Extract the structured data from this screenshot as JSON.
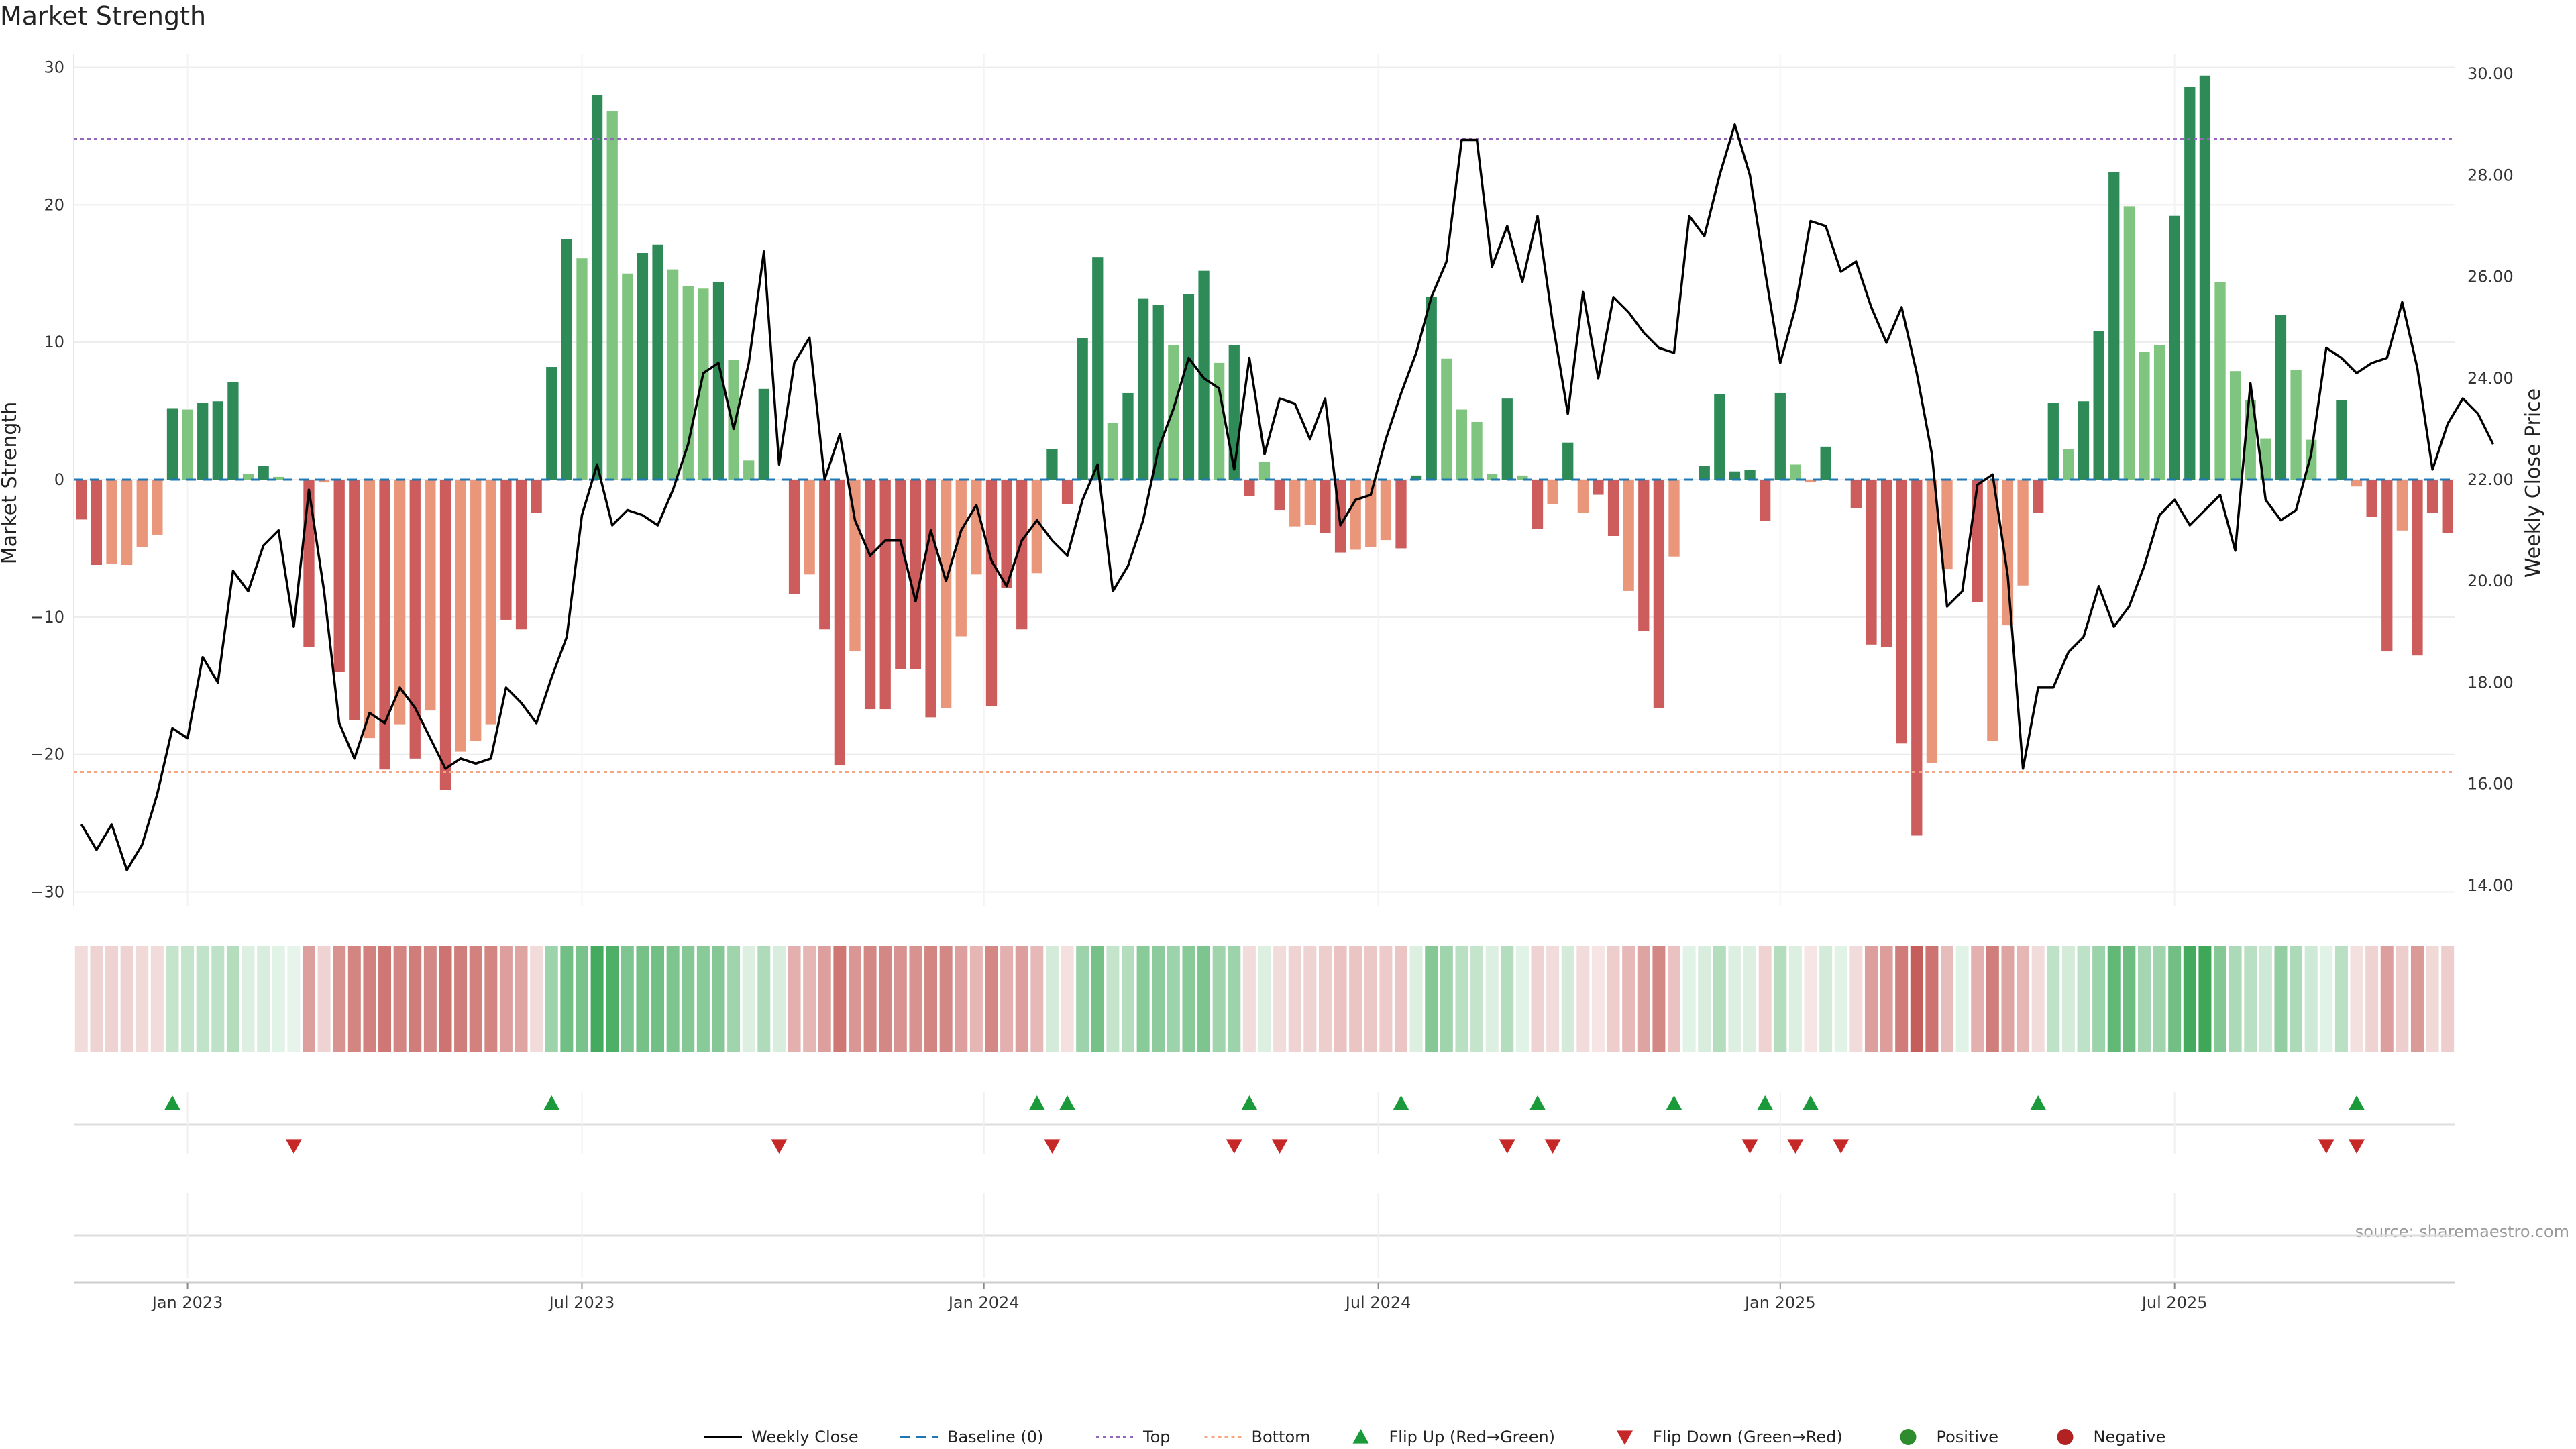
{
  "title": "Market Strength",
  "source": "source: sharemaestro.com",
  "colors": {
    "pos_dark": "#2e8b57",
    "pos_light": "#7fc47f",
    "neg_dark": "#cd5c5c",
    "neg_light": "#e9967a",
    "price": "#000000",
    "baseline": "#1f77b4",
    "top": "#9467bd",
    "bottom": "#f4a582",
    "flip_up": "#1a9a3a",
    "flip_down": "#c62828",
    "positive": "#2e8b2e",
    "negative": "#b22222"
  },
  "chart_data": {
    "type": "bar",
    "ylabel_left": "Market Strength",
    "ylabel_right": "Weekly Close Price",
    "ylim_left": [
      -31,
      31
    ],
    "ylim_right": [
      13.6,
      30.4
    ],
    "yticks_left": [
      "30",
      "20",
      "10",
      "0",
      "−10",
      "−20",
      "−30"
    ],
    "yticks_right": [
      "30.00",
      "28.00",
      "26.00",
      "24.00",
      "22.00",
      "20.00",
      "18.00",
      "16.00",
      "14.00"
    ],
    "x_ticks": [
      {
        "label": "Jan 2023",
        "week": 7.5
      },
      {
        "label": "Jul 2023",
        "week": 33.5
      },
      {
        "label": "Jan 2024",
        "week": 60
      },
      {
        "label": "Jul 2024",
        "week": 86
      },
      {
        "label": "Jan 2025",
        "week": 112.5
      },
      {
        "label": "Jul 2025",
        "week": 138.5
      }
    ],
    "top_level": 24.8,
    "bottom_level": -21.3,
    "strength": [
      -2.9,
      -6.2,
      -6.1,
      -6.2,
      -4.9,
      -4.0,
      5.2,
      5.1,
      5.6,
      5.7,
      7.1,
      0.4,
      1.0,
      0.2,
      0,
      -12.2,
      -0.2,
      -14.0,
      -17.5,
      -18.8,
      -21.1,
      -17.8,
      -20.3,
      -16.8,
      -22.6,
      -19.8,
      -19.0,
      -17.8,
      -10.2,
      -10.9,
      -2.4,
      8.2,
      17.5,
      16.1,
      28.0,
      26.8,
      15.0,
      16.5,
      17.1,
      15.3,
      14.1,
      13.9,
      14.4,
      8.7,
      1.4,
      6.6,
      0,
      -8.3,
      -6.9,
      -10.9,
      -20.8,
      -12.5,
      -16.7,
      -16.7,
      -13.8,
      -13.8,
      -17.3,
      -16.6,
      -11.4,
      -6.9,
      -16.5,
      -7.9,
      -10.9,
      -6.8,
      2.2,
      -1.8,
      10.3,
      16.2,
      4.1,
      6.3,
      13.2,
      12.7,
      9.8,
      13.5,
      15.2,
      8.5,
      9.8,
      -1.2,
      1.3,
      -2.2,
      -3.4,
      -3.3,
      -3.9,
      -5.3,
      -5.1,
      -4.9,
      -4.4,
      -5.0,
      0.3,
      13.3,
      8.8,
      5.1,
      4.2,
      0.4,
      5.9,
      0.3,
      -3.6,
      -1.8,
      2.7,
      -2.4,
      -1.1,
      -4.1,
      -8.1,
      -11.0,
      -16.6,
      -5.6,
      0,
      1.0,
      6.2,
      0.6,
      0.7,
      -3.0,
      6.3,
      1.1,
      -0.2,
      2.4,
      0,
      -2.1,
      -12.0,
      -12.2,
      -19.2,
      -25.9,
      -20.6,
      -6.5,
      0,
      -8.9,
      -19.0,
      -10.6,
      -7.7,
      -2.4,
      5.6,
      2.2,
      5.7,
      10.8,
      22.4,
      19.9,
      9.3,
      9.8,
      19.2,
      28.6,
      29.4,
      14.4,
      7.9,
      5.8,
      3.0,
      12.0,
      8.0,
      2.9,
      0,
      5.8,
      -0.5,
      -2.7,
      -12.5,
      -3.7,
      -12.8,
      -2.4,
      -3.9
    ],
    "strength_shade": [
      1,
      1,
      0,
      0,
      0,
      0,
      1,
      0,
      1,
      1,
      1,
      0,
      1,
      0,
      0,
      1,
      0,
      1,
      1,
      0,
      1,
      0,
      1,
      0,
      1,
      0,
      0,
      0,
      1,
      1,
      1,
      1,
      1,
      0,
      1,
      0,
      0,
      1,
      1,
      0,
      0,
      0,
      1,
      0,
      0,
      1,
      0,
      1,
      0,
      1,
      1,
      0,
      1,
      1,
      1,
      1,
      1,
      0,
      0,
      0,
      1,
      1,
      1,
      0,
      1,
      1,
      1,
      1,
      0,
      1,
      1,
      1,
      0,
      1,
      1,
      0,
      1,
      1,
      0,
      1,
      0,
      0,
      1,
      1,
      0,
      0,
      0,
      1,
      1,
      1,
      0,
      0,
      0,
      0,
      1,
      0,
      1,
      0,
      1,
      0,
      1,
      1,
      0,
      1,
      1,
      0,
      0,
      1,
      1,
      1,
      1,
      1,
      1,
      0,
      0,
      1,
      0,
      1,
      1,
      1,
      1,
      1,
      0,
      0,
      0,
      1,
      0,
      0,
      0,
      1,
      1,
      0,
      1,
      1,
      1,
      0,
      0,
      0,
      1,
      1,
      1,
      0,
      0,
      0,
      0,
      1,
      0,
      0,
      0,
      1,
      0,
      1,
      1,
      0,
      1,
      1,
      1
    ],
    "price": [
      15.2,
      14.7,
      15.2,
      14.3,
      14.8,
      15.8,
      17.1,
      16.9,
      18.5,
      18.0,
      20.2,
      19.8,
      20.7,
      21.0,
      19.1,
      21.8,
      19.8,
      17.2,
      16.5,
      17.4,
      17.2,
      17.9,
      17.5,
      16.9,
      16.3,
      16.5,
      16.4,
      16.5,
      17.9,
      17.6,
      17.2,
      18.1,
      18.9,
      21.3,
      22.3,
      21.1,
      21.4,
      21.3,
      21.1,
      21.8,
      22.7,
      24.1,
      24.3,
      23.0,
      24.3,
      26.5,
      22.3,
      24.3,
      24.8,
      22.0,
      22.9,
      21.2,
      20.5,
      20.8,
      20.8,
      19.6,
      21.0,
      20.0,
      21.0,
      21.5,
      20.4,
      19.9,
      20.8,
      21.2,
      20.8,
      20.5,
      21.6,
      22.3,
      19.8,
      20.3,
      21.2,
      22.6,
      23.4,
      24.4,
      24.0,
      23.8,
      22.2,
      24.4,
      22.5,
      23.6,
      23.5,
      22.8,
      23.6,
      21.1,
      21.6,
      21.7,
      22.8,
      23.7,
      24.5,
      25.6,
      26.3,
      28.7,
      28.7,
      26.2,
      27.0,
      25.9,
      27.2,
      25.1,
      23.3,
      25.7,
      24.0,
      25.6,
      25.3,
      24.9,
      24.6,
      24.5,
      27.2,
      26.8,
      28.0,
      29.0,
      28.0,
      26.1,
      24.3,
      25.4,
      27.1,
      27.0,
      26.1,
      26.3,
      25.4,
      24.7,
      25.4,
      24.1,
      22.5,
      19.5,
      19.8,
      21.9,
      22.1,
      20.1,
      16.3,
      17.9,
      17.9,
      18.6,
      18.9,
      19.9,
      19.1,
      19.5,
      20.3,
      21.3,
      21.6,
      21.1,
      21.4,
      21.7,
      20.6,
      23.9,
      21.6,
      21.2,
      21.4,
      22.5,
      24.6,
      24.4,
      24.1,
      24.3,
      24.4,
      25.5,
      24.2,
      22.2,
      23.1,
      23.6,
      23.3,
      22.7
    ],
    "heat": [
      0.2,
      0.25,
      0.25,
      0.25,
      0.22,
      0.2,
      0.3,
      0.3,
      0.32,
      0.33,
      0.38,
      0.18,
      0.2,
      0.15,
      0.12,
      0.55,
      0.25,
      0.62,
      0.7,
      0.72,
      0.78,
      0.7,
      0.75,
      0.68,
      0.8,
      0.74,
      0.72,
      0.7,
      0.55,
      0.52,
      0.2,
      0.5,
      0.72,
      0.68,
      0.95,
      0.9,
      0.65,
      0.7,
      0.72,
      0.66,
      0.62,
      0.6,
      0.62,
      0.48,
      0.18,
      0.4,
      0.2,
      0.45,
      0.42,
      0.55,
      0.78,
      0.6,
      0.68,
      0.68,
      0.62,
      0.62,
      0.7,
      0.68,
      0.55,
      0.42,
      0.68,
      0.45,
      0.55,
      0.4,
      0.22,
      0.18,
      0.5,
      0.7,
      0.3,
      0.38,
      0.6,
      0.58,
      0.5,
      0.6,
      0.66,
      0.48,
      0.5,
      0.2,
      0.18,
      0.2,
      0.25,
      0.25,
      0.28,
      0.35,
      0.33,
      0.32,
      0.3,
      0.33,
      0.18,
      0.62,
      0.48,
      0.35,
      0.3,
      0.18,
      0.38,
      0.15,
      0.25,
      0.2,
      0.22,
      0.2,
      0.15,
      0.28,
      0.4,
      0.52,
      0.68,
      0.35,
      0.15,
      0.2,
      0.38,
      0.18,
      0.18,
      0.25,
      0.38,
      0.18,
      0.15,
      0.22,
      0.15,
      0.2,
      0.55,
      0.56,
      0.75,
      0.92,
      0.8,
      0.38,
      0.15,
      0.45,
      0.74,
      0.52,
      0.42,
      0.2,
      0.33,
      0.22,
      0.33,
      0.5,
      0.8,
      0.74,
      0.46,
      0.48,
      0.72,
      0.95,
      0.98,
      0.62,
      0.42,
      0.35,
      0.25,
      0.55,
      0.42,
      0.25,
      0.15,
      0.35,
      0.18,
      0.25,
      0.55,
      0.28,
      0.58,
      0.22,
      0.28
    ],
    "flip_up_weeks": [
      6,
      31,
      63,
      65,
      77,
      87,
      96,
      105,
      111,
      114,
      129,
      150
    ],
    "flip_down_weeks": [
      14,
      46,
      64,
      76,
      79,
      94,
      97,
      110,
      113,
      116,
      148,
      150
    ],
    "legend": [
      "Weekly Close",
      "Baseline (0)",
      "Top",
      "Bottom",
      "Flip Up (Red→Green)",
      "Flip Down (Green→Red)",
      "Positive",
      "Negative"
    ]
  }
}
